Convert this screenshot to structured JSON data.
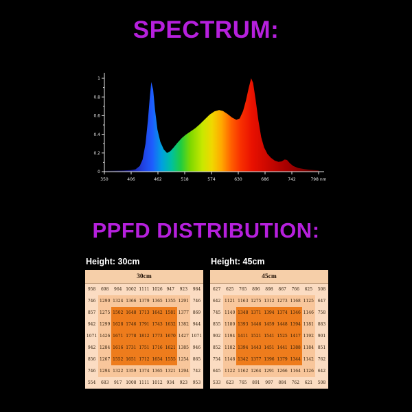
{
  "page": {
    "background": "#000000",
    "accent_magenta": "#b620dd"
  },
  "spectrum_section": {
    "title": "SPECTRUM:"
  },
  "ppfd_section": {
    "title": "PPFD DISTRIBUTION:",
    "palette": {
      "header": "#f6cfa9",
      "outer": "#fbdcc2",
      "mid": "#f8c69b",
      "center": "#ee7c1c",
      "text": "#2b1a08"
    }
  },
  "chart_data": [
    {
      "type": "area",
      "title": "",
      "xlabel": "",
      "ylabel": "",
      "xlim": [
        350,
        798
      ],
      "ylim": [
        0,
        1
      ],
      "xticks": [
        350,
        406,
        462,
        518,
        574,
        630,
        686,
        742,
        798
      ],
      "xtick_suffix_last": " nm",
      "yticks": [
        0,
        0.2,
        0.4,
        0.6,
        0.8,
        1
      ],
      "grid": false,
      "legend": false,
      "axis_color": "#e6e6e6",
      "points": [
        [
          350,
          0.012
        ],
        [
          370,
          0.012
        ],
        [
          390,
          0.013
        ],
        [
          405,
          0.016
        ],
        [
          415,
          0.025
        ],
        [
          424,
          0.06
        ],
        [
          430,
          0.13
        ],
        [
          436,
          0.3
        ],
        [
          441,
          0.55
        ],
        [
          445,
          0.8
        ],
        [
          448,
          0.96
        ],
        [
          452,
          0.88
        ],
        [
          456,
          0.66
        ],
        [
          461,
          0.45
        ],
        [
          467,
          0.32
        ],
        [
          474,
          0.24
        ],
        [
          481,
          0.2
        ],
        [
          488,
          0.22
        ],
        [
          495,
          0.26
        ],
        [
          503,
          0.31
        ],
        [
          512,
          0.36
        ],
        [
          520,
          0.395
        ],
        [
          530,
          0.43
        ],
        [
          540,
          0.465
        ],
        [
          550,
          0.51
        ],
        [
          560,
          0.56
        ],
        [
          570,
          0.61
        ],
        [
          580,
          0.645
        ],
        [
          590,
          0.66
        ],
        [
          598,
          0.65
        ],
        [
          607,
          0.62
        ],
        [
          617,
          0.58
        ],
        [
          626,
          0.555
        ],
        [
          633,
          0.57
        ],
        [
          640,
          0.65
        ],
        [
          646,
          0.76
        ],
        [
          652,
          0.9
        ],
        [
          657,
          1.0
        ],
        [
          661,
          0.95
        ],
        [
          666,
          0.78
        ],
        [
          672,
          0.55
        ],
        [
          678,
          0.37
        ],
        [
          684,
          0.26
        ],
        [
          691,
          0.19
        ],
        [
          698,
          0.15
        ],
        [
          706,
          0.12
        ],
        [
          714,
          0.105
        ],
        [
          721,
          0.11
        ],
        [
          727,
          0.13
        ],
        [
          732,
          0.125
        ],
        [
          738,
          0.09
        ],
        [
          745,
          0.06
        ],
        [
          755,
          0.04
        ],
        [
          768,
          0.028
        ],
        [
          780,
          0.02
        ],
        [
          798,
          0.013
        ]
      ],
      "gradient_stops": [
        [
          350,
          "#05050f"
        ],
        [
          400,
          "#1a1a8c"
        ],
        [
          430,
          "#2040e0"
        ],
        [
          450,
          "#1e5cff"
        ],
        [
          470,
          "#00a0e0"
        ],
        [
          490,
          "#00c0a0"
        ],
        [
          510,
          "#20cc40"
        ],
        [
          530,
          "#7fd800"
        ],
        [
          555,
          "#c8e800"
        ],
        [
          575,
          "#f0d800"
        ],
        [
          595,
          "#ffa800"
        ],
        [
          615,
          "#ff6000"
        ],
        [
          635,
          "#f83000"
        ],
        [
          660,
          "#e81000"
        ],
        [
          690,
          "#cc0800"
        ],
        [
          730,
          "#a80000"
        ],
        [
          798,
          "#600000"
        ]
      ]
    },
    {
      "type": "table",
      "label": "Height: 30cm",
      "header": "30cm",
      "rows": [
        [
          958,
          698,
          964,
          1002,
          1111,
          1026,
          947,
          923,
          984
        ],
        [
          746,
          1290,
          1324,
          1366,
          1379,
          1365,
          1355,
          1291,
          746
        ],
        [
          857,
          1275,
          1502,
          1648,
          1713,
          1642,
          1581,
          1377,
          869
        ],
        [
          942,
          1299,
          1628,
          1746,
          1791,
          1743,
          1632,
          1382,
          944
        ],
        [
          1071,
          1426,
          1671,
          1778,
          1812,
          1773,
          1670,
          1427,
          1071
        ],
        [
          942,
          1284,
          1616,
          1731,
          1751,
          1716,
          1621,
          1385,
          946
        ],
        [
          856,
          1267,
          1552,
          1651,
          1712,
          1654,
          1555,
          1254,
          865
        ],
        [
          746,
          1294,
          1322,
          1359,
          1374,
          1365,
          1321,
          1294,
          742
        ],
        [
          554,
          683,
          917,
          1008,
          1111,
          1012,
          934,
          923,
          953
        ]
      ]
    },
    {
      "type": "table",
      "label": "Height: 45cm",
      "header": "45cm",
      "rows": [
        [
          627,
          625,
          765,
          896,
          898,
          867,
          766,
          625,
          508
        ],
        [
          642,
          1121,
          1163,
          1275,
          1312,
          1273,
          1168,
          1125,
          647
        ],
        [
          745,
          1140,
          1348,
          1371,
          1394,
          1374,
          1346,
          1146,
          758
        ],
        [
          855,
          1180,
          1393,
          1446,
          1459,
          1448,
          1394,
          1181,
          883
        ],
        [
          902,
          1194,
          1411,
          1521,
          1541,
          1525,
          1417,
          1192,
          901
        ],
        [
          852,
          1182,
          1394,
          1443,
          1451,
          1441,
          1388,
          1184,
          851
        ],
        [
          754,
          1148,
          1342,
          1377,
          1396,
          1379,
          1344,
          1142,
          762
        ],
        [
          645,
          1122,
          1162,
          1264,
          1291,
          1266,
          1164,
          1126,
          642
        ],
        [
          533,
          623,
          765,
          891,
          997,
          884,
          762,
          621,
          508
        ]
      ]
    }
  ]
}
